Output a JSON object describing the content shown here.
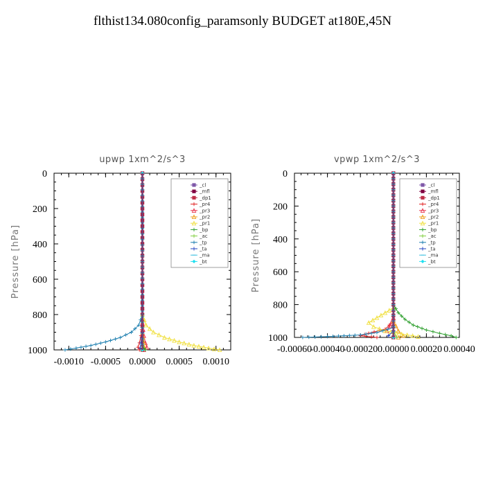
{
  "page_title": "flthist134.080config_paramsonly  BUDGET at180E,45N",
  "chart_data": [
    {
      "type": "line",
      "title": "upwp   1xm^2/s^3",
      "ylabel": "Pressure [hPa]",
      "xlabel": "",
      "xlim": [
        -0.0012,
        0.0012
      ],
      "ylim": [
        1000,
        0
      ],
      "x_ticks": [
        "-0.0010",
        "-0.0005",
        "0.0000",
        "0.0005",
        "0.0010"
      ],
      "y_ticks": [
        "0",
        "200",
        "400",
        "600",
        "800",
        "1000"
      ],
      "legend_position": "top-right",
      "series": [
        {
          "name": "_cl",
          "color": "#7e57a8",
          "marker": "square",
          "points": [
            [
              0,
              0
            ],
            [
              0,
              200
            ],
            [
              0,
              400
            ],
            [
              0,
              600
            ],
            [
              0,
              800
            ],
            [
              0,
              1000
            ]
          ]
        },
        {
          "name": "_mfl",
          "color": "#800040",
          "marker": "square",
          "points": [
            [
              0,
              0
            ],
            [
              0,
              200
            ],
            [
              0,
              400
            ],
            [
              0,
              600
            ],
            [
              0,
              800
            ],
            [
              0,
              1000
            ]
          ]
        },
        {
          "name": "_dp1",
          "color": "#c0304a",
          "marker": "square",
          "points": [
            [
              0,
              0
            ],
            [
              0,
              200
            ],
            [
              0,
              400
            ],
            [
              0,
              600
            ],
            [
              0,
              800
            ],
            [
              0,
              900
            ],
            [
              0,
              1000
            ]
          ]
        },
        {
          "name": "_pr4",
          "color": "#e02020",
          "marker": "plus",
          "points": [
            [
              0,
              850
            ],
            [
              -2e-05,
              920
            ],
            [
              -4e-05,
              960
            ],
            [
              -6e-05,
              985
            ],
            [
              -4e-05,
              1000
            ]
          ]
        },
        {
          "name": "_pr3",
          "color": "#e8304a",
          "marker": "tri",
          "points": [
            [
              0,
              850
            ],
            [
              2e-05,
              920
            ],
            [
              4e-05,
              960
            ],
            [
              6e-05,
              985
            ],
            [
              2e-05,
              1000
            ]
          ]
        },
        {
          "name": "_pr2",
          "color": "#f0a020",
          "marker": "tri",
          "points": [
            [
              0,
              900
            ],
            [
              2e-05,
              960
            ],
            [
              3e-05,
              990
            ]
          ]
        },
        {
          "name": "_pr1",
          "color": "#f0e040",
          "marker": "tri",
          "points": [
            [
              0,
              800
            ],
            [
              5e-05,
              860
            ],
            [
              0.00015,
              900
            ],
            [
              0.0003,
              930
            ],
            [
              0.0005,
              955
            ],
            [
              0.0007,
              975
            ],
            [
              0.0009,
              990
            ],
            [
              0.00105,
              1000
            ]
          ]
        },
        {
          "name": "_bp",
          "color": "#30a030",
          "marker": "plus",
          "points": [
            [
              0,
              950
            ],
            [
              2e-05,
              990
            ],
            [
              4e-05,
              1000
            ]
          ]
        },
        {
          "name": "_ac",
          "color": "#80d040",
          "marker": "plus",
          "points": [
            [
              0,
              980
            ],
            [
              -1e-05,
              1000
            ]
          ]
        },
        {
          "name": "_tp",
          "color": "#2080b0",
          "marker": "plus",
          "points": [
            [
              0,
              800
            ],
            [
              -5e-05,
              860
            ],
            [
              -0.00015,
              900
            ],
            [
              -0.0003,
              930
            ],
            [
              -0.0005,
              955
            ],
            [
              -0.0007,
              975
            ],
            [
              -0.0009,
              990
            ],
            [
              -0.00105,
              1000
            ]
          ]
        },
        {
          "name": "_ta",
          "color": "#2040c0",
          "marker": "plus",
          "points": [
            [
              0,
              900
            ],
            [
              -2e-05,
              960
            ],
            [
              -3e-05,
              990
            ]
          ]
        },
        {
          "name": "_ma",
          "color": "#40c0e0",
          "marker": "dash",
          "points": [
            [
              0,
              0
            ],
            [
              0,
              1000
            ]
          ]
        },
        {
          "name": "_bt",
          "color": "#20e0f0",
          "marker": "diamond",
          "points": [
            [
              0,
              0
            ],
            [
              0,
              1000
            ]
          ]
        }
      ]
    },
    {
      "type": "line",
      "title": "vpwp   1xm^2/s^3",
      "ylabel": "Pressure [hPa]",
      "xlabel": "",
      "xlim": [
        -0.0006,
        0.0004
      ],
      "ylim": [
        1000,
        0
      ],
      "x_ticks": [
        "-0.00060",
        "-0.00040",
        "-0.00020",
        "0.00000",
        "0.00020",
        "0.00040"
      ],
      "y_ticks": [
        "0",
        "200",
        "400",
        "600",
        "800",
        "1000"
      ],
      "legend_position": "top-right",
      "series": [
        {
          "name": "_cl",
          "color": "#7e57a8",
          "marker": "square",
          "points": [
            [
              0,
              0
            ],
            [
              0,
              200
            ],
            [
              0,
              400
            ],
            [
              0,
              600
            ],
            [
              0,
              800
            ],
            [
              0,
              1000
            ]
          ]
        },
        {
          "name": "_mfl",
          "color": "#800040",
          "marker": "square",
          "points": [
            [
              0,
              0
            ],
            [
              0,
              200
            ],
            [
              0,
              400
            ],
            [
              0,
              600
            ],
            [
              0,
              800
            ],
            [
              0,
              1000
            ]
          ]
        },
        {
          "name": "_dp1",
          "color": "#c0304a",
          "marker": "square",
          "points": [
            [
              0,
              0
            ],
            [
              0,
              200
            ],
            [
              0,
              400
            ],
            [
              0,
              600
            ],
            [
              0,
              800
            ],
            [
              0,
              900
            ],
            [
              0,
              1000
            ]
          ]
        },
        {
          "name": "_pr4",
          "color": "#e02020",
          "marker": "plus",
          "points": [
            [
              0,
              900
            ],
            [
              -5e-05,
              950
            ],
            [
              -0.00015,
              975
            ],
            [
              -0.0002,
              990
            ],
            [
              -0.0001,
              1000
            ]
          ]
        },
        {
          "name": "_pr3",
          "color": "#e8304a",
          "marker": "tri",
          "points": [
            [
              0,
              880
            ],
            [
              -2e-05,
              930
            ],
            [
              -4e-05,
              960
            ]
          ]
        },
        {
          "name": "_pr2",
          "color": "#f0a020",
          "marker": "tri",
          "points": [
            [
              0,
              900
            ],
            [
              3e-05,
              960
            ],
            [
              6e-05,
              990
            ],
            [
              3e-05,
              1000
            ]
          ]
        },
        {
          "name": "_pr1",
          "color": "#f0e040",
          "marker": "tri",
          "points": [
            [
              0,
              820
            ],
            [
              -5e-05,
              850
            ],
            [
              -0.0001,
              880
            ],
            [
              -0.00015,
              910
            ],
            [
              -0.00012,
              935
            ],
            [
              -5e-05,
              960
            ],
            [
              5e-05,
              980
            ],
            [
              0.00015,
              995
            ]
          ]
        },
        {
          "name": "_bp",
          "color": "#30a030",
          "marker": "plus",
          "points": [
            [
              0,
              800
            ],
            [
              3e-05,
              850
            ],
            [
              7e-05,
              890
            ],
            [
              0.00012,
              925
            ],
            [
              0.0002,
              955
            ],
            [
              0.00028,
              975
            ],
            [
              0.00035,
              990
            ],
            [
              0.00038,
              1000
            ]
          ]
        },
        {
          "name": "_ac",
          "color": "#80d040",
          "marker": "plus",
          "points": [
            [
              0,
              960
            ],
            [
              2e-05,
              1000
            ]
          ]
        },
        {
          "name": "_tp",
          "color": "#2080b0",
          "marker": "plus",
          "points": [
            [
              0,
              940
            ],
            [
              -0.0001,
              970
            ],
            [
              -0.0002,
              985
            ],
            [
              -0.0004,
              995
            ],
            [
              -0.00055,
              1000
            ]
          ]
        },
        {
          "name": "_ta",
          "color": "#2040c0",
          "marker": "plus",
          "points": [
            [
              0,
              960
            ],
            [
              -3e-05,
              990
            ]
          ]
        },
        {
          "name": "_ma",
          "color": "#40c0e0",
          "marker": "dash",
          "points": [
            [
              0,
              0
            ],
            [
              0,
              1000
            ]
          ]
        },
        {
          "name": "_bt",
          "color": "#20e0f0",
          "marker": "diamond",
          "points": [
            [
              0,
              0
            ],
            [
              0,
              1000
            ]
          ]
        }
      ]
    }
  ]
}
